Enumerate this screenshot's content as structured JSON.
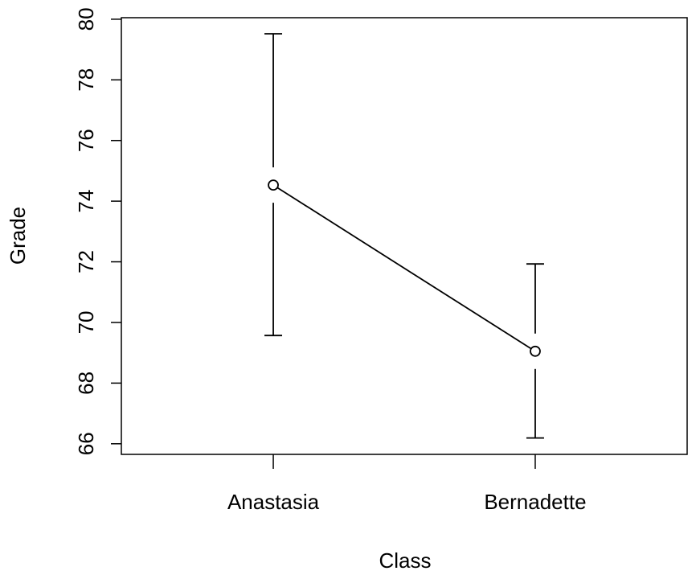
{
  "chart_data": {
    "type": "line",
    "title": "",
    "xlabel": "Class",
    "ylabel": "Grade",
    "categories": [
      "Anastasia",
      "Bernadette"
    ],
    "series": [
      {
        "values": [
          74.53,
          69.05
        ],
        "error_lower": [
          69.57,
          66.19
        ],
        "error_upper": [
          79.52,
          71.93
        ]
      }
    ],
    "ylim": [
      65.65,
      80.05
    ],
    "yticks": [
      66,
      68,
      70,
      72,
      74,
      76,
      78,
      80
    ],
    "grid": false,
    "legend": "none"
  }
}
